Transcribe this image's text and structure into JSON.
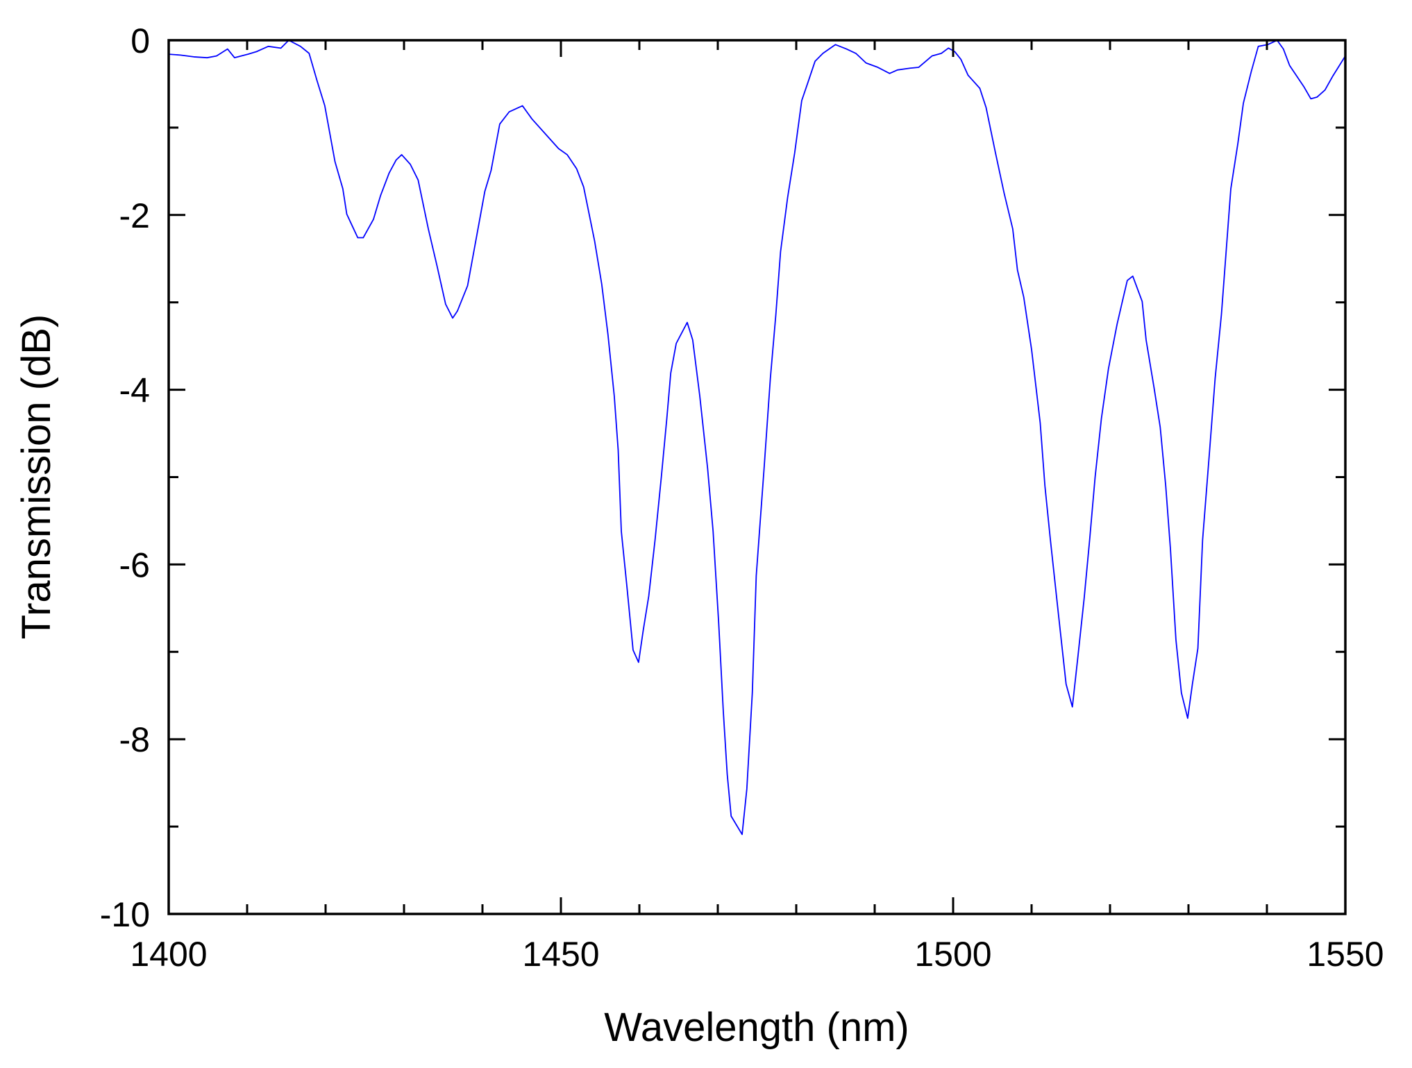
{
  "chart_data": {
    "type": "line",
    "xlabel": "Wavelength (nm)",
    "ylabel": "Transmission (dB)",
    "xlim": [
      1400,
      1550
    ],
    "ylim": [
      -10,
      0
    ],
    "xticks": [
      1400,
      1450,
      1500,
      1550
    ],
    "yticks": [
      0,
      -2,
      -4,
      -6,
      -8,
      -10
    ],
    "xminorticks": [
      1410,
      1420,
      1430,
      1440,
      1460,
      1470,
      1480,
      1490,
      1510,
      1520,
      1530,
      1540
    ],
    "yminorticks": [
      -1,
      -3,
      -5,
      -7,
      -9
    ],
    "x": [
      1400,
      1401.5,
      1403.2,
      1404.9,
      1406.1,
      1407.5,
      1408.4,
      1410.1,
      1411.2,
      1412.7,
      1414.3,
      1415.3,
      1416.8,
      1417.9,
      1418.9,
      1419.9,
      1421.2,
      1422.2,
      1422.7,
      1424.1,
      1424.8,
      1426.1,
      1427.0,
      1428.1,
      1429.0,
      1429.7,
      1430.8,
      1431.8,
      1433.1,
      1434.2,
      1435.3,
      1436.2,
      1436.8,
      1438.1,
      1439.1,
      1440.3,
      1441.1,
      1442.2,
      1443.4,
      1445.1,
      1446.3,
      1448.3,
      1449.7,
      1450.8,
      1452.0,
      1452.9,
      1454.3,
      1455.2,
      1456.0,
      1456.8,
      1457.3,
      1457.7,
      1458.4,
      1459.2,
      1459.9,
      1460.5,
      1461.2,
      1462.0,
      1462.8,
      1463.5,
      1464.0,
      1464.7,
      1466.1,
      1466.8,
      1467.7,
      1468.7,
      1469.4,
      1470.1,
      1470.7,
      1471.2,
      1471.7,
      1473.1,
      1473.7,
      1474.4,
      1474.9,
      1475.9,
      1476.7,
      1477.4,
      1478.0,
      1478.9,
      1479.8,
      1480.7,
      1481.5,
      1482.4,
      1483.4,
      1485.0,
      1486.4,
      1487.6,
      1488.9,
      1490.4,
      1491.9,
      1492.9,
      1494.5,
      1495.6,
      1497.3,
      1498.5,
      1499.4,
      1500.2,
      1501.0,
      1501.9,
      1503.4,
      1504.2,
      1505.4,
      1506.5,
      1507.6,
      1508.2,
      1509.0,
      1510.0,
      1511.1,
      1511.7,
      1512.4,
      1513.4,
      1514.4,
      1515.2,
      1515.9,
      1516.7,
      1517.4,
      1518.1,
      1518.9,
      1519.8,
      1520.9,
      1521.7,
      1522.2,
      1522.9,
      1524.1,
      1524.6,
      1525.6,
      1526.4,
      1527.1,
      1527.7,
      1528.4,
      1529.1,
      1529.9,
      1530.5,
      1531.2,
      1531.8,
      1532.7,
      1533.4,
      1534.2,
      1534.8,
      1535.4,
      1536.3,
      1537.0,
      1538.0,
      1538.9,
      1540.1,
      1541.3,
      1542.1,
      1542.9,
      1543.8,
      1544.7,
      1545.6,
      1546.4,
      1547.4,
      1548.4,
      1550
    ],
    "series": [
      {
        "color": "#0000ff",
        "values": [
          -0.16,
          -0.17,
          -0.19,
          -0.2,
          -0.18,
          -0.1,
          -0.2,
          -0.16,
          -0.13,
          -0.07,
          -0.09,
          0,
          -0.07,
          -0.15,
          -0.46,
          -0.75,
          -1.39,
          -1.7,
          -1.99,
          -2.26,
          -2.26,
          -2.05,
          -1.78,
          -1.52,
          -1.37,
          -1.31,
          -1.42,
          -1.6,
          -2.16,
          -2.58,
          -3.02,
          -3.18,
          -3.1,
          -2.81,
          -2.32,
          -1.73,
          -1.49,
          -0.96,
          -0.82,
          -0.75,
          -0.9,
          -1.1,
          -1.24,
          -1.31,
          -1.47,
          -1.68,
          -2.3,
          -2.79,
          -3.37,
          -4.07,
          -4.69,
          -5.62,
          -6.24,
          -6.98,
          -7.12,
          -6.75,
          -6.36,
          -5.72,
          -5.0,
          -4.33,
          -3.81,
          -3.47,
          -3.23,
          -3.43,
          -4.07,
          -4.9,
          -5.62,
          -6.65,
          -7.68,
          -8.4,
          -8.88,
          -9.09,
          -8.57,
          -7.47,
          -6.13,
          -4.9,
          -3.87,
          -3.14,
          -2.42,
          -1.8,
          -1.29,
          -0.69,
          -0.48,
          -0.24,
          -0.15,
          -0.05,
          -0.1,
          -0.15,
          -0.26,
          -0.31,
          -0.38,
          -0.34,
          -0.32,
          -0.31,
          -0.18,
          -0.15,
          -0.09,
          -0.13,
          -0.22,
          -0.4,
          -0.55,
          -0.77,
          -1.29,
          -1.75,
          -2.16,
          -2.63,
          -2.94,
          -3.54,
          -4.38,
          -5.1,
          -5.72,
          -6.55,
          -7.37,
          -7.63,
          -7.06,
          -6.39,
          -5.72,
          -5.0,
          -4.33,
          -3.76,
          -3.25,
          -2.94,
          -2.75,
          -2.7,
          -2.99,
          -3.43,
          -3.97,
          -4.43,
          -5.1,
          -5.82,
          -6.86,
          -7.47,
          -7.76,
          -7.37,
          -6.96,
          -5.72,
          -4.69,
          -3.87,
          -3.14,
          -2.42,
          -1.7,
          -1.18,
          -0.72,
          -0.36,
          -0.07,
          -0.05,
          0,
          -0.1,
          -0.29,
          -0.41,
          -0.53,
          -0.67,
          -0.65,
          -0.57,
          -0.41,
          -0.18
        ]
      }
    ]
  }
}
